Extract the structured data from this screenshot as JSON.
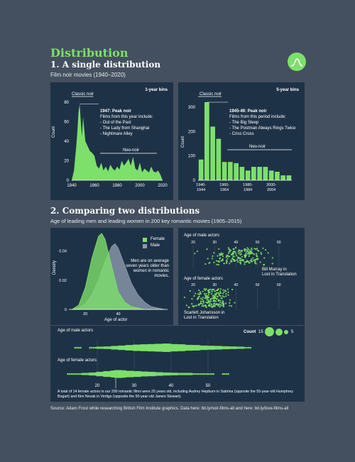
{
  "header": {
    "title": "Distribution",
    "section1_title": "1. A single distribution",
    "section1_subtitle": "Film noir movies (1940–2020)",
    "section2_title": "2. Comparing two distributions",
    "section2_subtitle": "Age of leading men and leading women in 200 key romantic movies (1905–2015)",
    "logo_icon": "bell-curve-icon"
  },
  "colors": {
    "background": "#44505f",
    "panel": "#1e3247",
    "accent": "#7de06a",
    "male": "#8c9aad"
  },
  "panel_a": {
    "bin_label": "1-year bins",
    "ylabel": "Count",
    "classic_label": "Classic noir",
    "neo_label": "Neo-noir",
    "peak_title": "1947: Peak noir",
    "peak_lines": [
      "Films from this year include:",
      "- Out of the Past",
      "- The Lady from Shanghai",
      "- Nightmare Alley"
    ]
  },
  "panel_b": {
    "bin_label": "5-year bins",
    "ylabel": "Count",
    "classic_label": "Classic noir",
    "neo_label": "Neo-noir",
    "peak_title": "1945-49: Peak noir",
    "peak_lines": [
      "Films from this period include:",
      "- The Big Sleep",
      "- The Postman Always Rings Twice",
      "- Criss Cross"
    ]
  },
  "panel_c": {
    "ylabel": "Density",
    "xlabel": "Age of actor",
    "legend_female": "Female",
    "legend_male": "Male",
    "note_lines": [
      "Men are on average",
      "seven years older than",
      "women in romantic",
      "movies."
    ]
  },
  "panel_d": {
    "male_title": "Age of male actors",
    "female_title": "Age of female actors",
    "male_note": [
      "Bill Murray in",
      "Lost in Translation"
    ],
    "female_note": [
      "Scarlett Johansson in",
      "Lost in Translation"
    ]
  },
  "panel_e": {
    "male_title": "Age of male actors",
    "female_title": "Age of female actors",
    "count_label": "Count",
    "count_min": "15",
    "count_max": "5",
    "footnote_lines": [
      "A total of 14 female actors in our 200 romantic films were 25 years old, including Audrey Hepburn in Sabrina (opposite the 55-year-old Humphrey",
      "Bogart) and Kim Novak in Vertigo (opposite the 50-year-old James Stewart)."
    ]
  },
  "footer": {
    "source": "Source: Adam Frost while researching British Film Institute graphics. Data here: bit.ly/noir-films-all and here: bit.ly/love-films-all"
  },
  "chart_data": [
    {
      "type": "area",
      "title": "1-year bins",
      "ylabel": "Count",
      "xlim": [
        1940,
        2020
      ],
      "ylim": [
        0,
        80
      ],
      "x": [
        1940,
        1942,
        1944,
        1945,
        1946,
        1947,
        1948,
        1949,
        1950,
        1952,
        1954,
        1956,
        1958,
        1960,
        1962,
        1964,
        1966,
        1968,
        1970,
        1972,
        1974,
        1976,
        1978,
        1980,
        1982,
        1984,
        1986,
        1988,
        1990,
        1992,
        1994,
        1996,
        1998,
        2000,
        2002,
        2004,
        2006,
        2008,
        2010,
        2012,
        2014,
        2016,
        2018,
        2020
      ],
      "values": [
        0,
        10,
        35,
        50,
        70,
        78,
        60,
        45,
        65,
        40,
        35,
        30,
        28,
        25,
        15,
        12,
        18,
        10,
        14,
        9,
        16,
        12,
        10,
        14,
        11,
        20,
        15,
        18,
        22,
        15,
        24,
        12,
        10,
        18,
        8,
        12,
        10,
        8,
        14,
        9,
        8,
        10,
        6,
        0
      ]
    },
    {
      "type": "bar",
      "title": "5-year bins",
      "ylabel": "Count",
      "categories": [
        "1940-1944",
        "1945-1949",
        "1950-1954",
        "1955-1959",
        "1960-1964",
        "1965-1969",
        "1970-1974",
        "1975-1979",
        "1980-1984",
        "1985-1989",
        "1990-1994",
        "1995-1999",
        "2000-2004",
        "2005-2009",
        "2010-2014",
        "2015-2019"
      ],
      "tick_labels": [
        "1940-\n1944",
        "1960-\n1964",
        "1980-\n1984",
        "2000-\n2004"
      ],
      "values": [
        85,
        320,
        220,
        170,
        75,
        75,
        70,
        55,
        40,
        55,
        55,
        55,
        40,
        35,
        20,
        20
      ],
      "ylim": [
        0,
        320
      ]
    },
    {
      "type": "area",
      "title": "",
      "xlabel": "Age of actor",
      "ylabel": "Density",
      "xlim": [
        10,
        70
      ],
      "ylim": [
        0,
        0.05
      ],
      "series": [
        {
          "name": "Female",
          "x": [
            12,
            16,
            20,
            24,
            28,
            30,
            32,
            36,
            40,
            44,
            48,
            52,
            56,
            60,
            64,
            68
          ],
          "values": [
            0,
            0.003,
            0.015,
            0.035,
            0.05,
            0.052,
            0.048,
            0.03,
            0.012,
            0.005,
            0.002,
            0.001,
            0,
            0,
            0,
            0
          ]
        },
        {
          "name": "Male",
          "x": [
            12,
            16,
            20,
            24,
            28,
            32,
            36,
            38,
            40,
            44,
            48,
            52,
            56,
            60,
            64,
            68
          ],
          "values": [
            0,
            0.001,
            0.004,
            0.01,
            0.02,
            0.033,
            0.043,
            0.045,
            0.042,
            0.03,
            0.018,
            0.01,
            0.005,
            0.002,
            0.001,
            0
          ]
        }
      ]
    },
    {
      "type": "scatter",
      "title": "Age of male actors",
      "xlim": [
        15,
        70
      ],
      "x_ticks": [
        20,
        30,
        40,
        50,
        60
      ],
      "series": [
        {
          "name": "Male",
          "range": [
            20,
            62
          ]
        }
      ]
    },
    {
      "type": "scatter",
      "title": "Age of female actors",
      "xlim": [
        15,
        70
      ],
      "x_ticks": [
        20,
        30,
        40,
        50,
        60
      ],
      "series": [
        {
          "name": "Female",
          "range": [
            15,
            38
          ]
        }
      ]
    },
    {
      "type": "scatter",
      "title": "Age of male actors",
      "xlim": [
        10,
        65
      ],
      "x_ticks": [
        20,
        30,
        40,
        50
      ],
      "series": [
        {
          "name": "Male",
          "x": [
            14,
            18,
            20,
            22,
            24,
            26,
            28,
            30,
            32,
            34,
            36,
            38,
            40,
            42,
            44,
            46,
            48,
            50,
            52,
            54,
            56,
            58,
            60
          ],
          "values": [
            1,
            1,
            2,
            3,
            5,
            7,
            9,
            11,
            12,
            13,
            14,
            15,
            13,
            12,
            10,
            9,
            7,
            6,
            5,
            4,
            3,
            2,
            1
          ]
        }
      ]
    },
    {
      "type": "scatter",
      "title": "Age of female actors",
      "xlim": [
        10,
        65
      ],
      "x_ticks": [
        20,
        30,
        40,
        50
      ],
      "series": [
        {
          "name": "Female",
          "x": [
            12,
            14,
            16,
            18,
            20,
            22,
            24,
            25,
            26,
            28,
            30,
            32,
            34,
            36,
            38,
            40,
            42,
            44,
            46,
            48,
            50,
            54
          ],
          "values": [
            1,
            1,
            2,
            4,
            7,
            10,
            12,
            14,
            13,
            11,
            10,
            8,
            7,
            5,
            4,
            3,
            2,
            2,
            1,
            1,
            1,
            1
          ]
        }
      ]
    }
  ]
}
